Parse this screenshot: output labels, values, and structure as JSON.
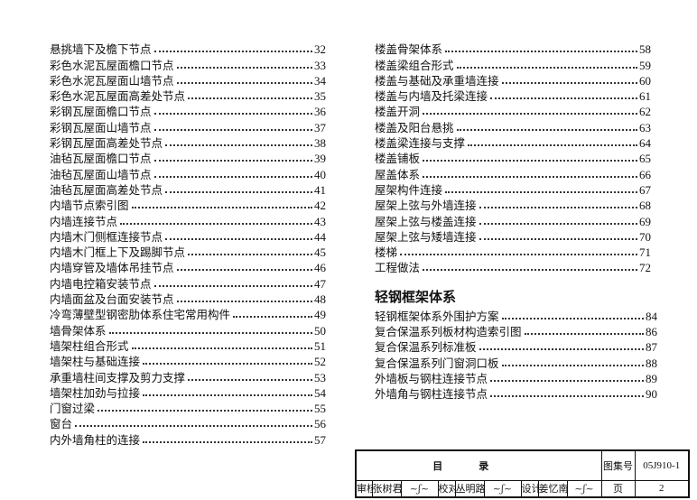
{
  "left_column": [
    {
      "title": "悬挑墙下及檐下节点",
      "page": "32"
    },
    {
      "title": "彩色水泥瓦屋面檐口节点",
      "page": "33"
    },
    {
      "title": "彩色水泥瓦屋面山墙节点",
      "page": "34"
    },
    {
      "title": "彩色水泥瓦屋面高差处节点",
      "page": "35"
    },
    {
      "title": "彩钢瓦屋面檐口节点",
      "page": "36"
    },
    {
      "title": "彩钢瓦屋面山墙节点",
      "page": "37"
    },
    {
      "title": "彩钢瓦屋面高差处节点",
      "page": "38"
    },
    {
      "title": "油毡瓦屋面檐口节点",
      "page": "39"
    },
    {
      "title": "油毡瓦屋面山墙节点",
      "page": "40"
    },
    {
      "title": "油毡瓦屋面高差处节点",
      "page": "41"
    },
    {
      "title": "内墙节点索引图",
      "page": "42"
    },
    {
      "title": "内墙连接节点",
      "page": "43"
    },
    {
      "title": "内墙木门侧框连接节点",
      "page": "44"
    },
    {
      "title": "内墙木门框上下及踢脚节点",
      "page": "45"
    },
    {
      "title": "内墙穿管及墙体吊挂节点",
      "page": "46"
    },
    {
      "title": "内墙电控箱安装节点",
      "page": "47"
    },
    {
      "title": "内墙面盆及台面安装节点",
      "page": "48"
    },
    {
      "title": "冷弯薄壁型钢密肋体系住宅常用构件",
      "page": "49"
    },
    {
      "title": "墙骨架体系",
      "page": "50"
    },
    {
      "title": "墙架柱组合形式",
      "page": "51"
    },
    {
      "title": "墙架柱与基础连接",
      "page": "52"
    },
    {
      "title": "承重墙柱间支撑及剪力支撑",
      "page": "53"
    },
    {
      "title": "墙架柱加劲与拉接",
      "page": "54"
    },
    {
      "title": "门窗过梁",
      "page": "55"
    },
    {
      "title": "窗台",
      "page": "56"
    },
    {
      "title": "内外墙角柱的连接",
      "page": "57"
    }
  ],
  "right_column": [
    {
      "title": "楼盖骨架体系",
      "page": "58"
    },
    {
      "title": "楼盖梁组合形式",
      "page": "59"
    },
    {
      "title": "楼盖与基础及承重墙连接",
      "page": "60"
    },
    {
      "title": "楼盖与内墙及托梁连接",
      "page": "61"
    },
    {
      "title": "楼盖开洞",
      "page": "62"
    },
    {
      "title": "楼盖及阳台悬挑",
      "page": "63"
    },
    {
      "title": "楼盖梁连接与支撑",
      "page": "64"
    },
    {
      "title": "楼盖铺板",
      "page": "65"
    },
    {
      "title": "屋盖体系",
      "page": "66"
    },
    {
      "title": "屋架构件连接",
      "page": "67"
    },
    {
      "title": "屋架上弦与外墙连接",
      "page": "68"
    },
    {
      "title": "屋架上弦与楼盖连接",
      "page": "69"
    },
    {
      "title": "屋架上弦与矮墙连接",
      "page": "70"
    },
    {
      "title": "楼梯",
      "page": "71"
    },
    {
      "title": "工程做法",
      "page": "72"
    }
  ],
  "section": {
    "heading": "轻钢框架体系",
    "items": [
      {
        "title": "轻钢框架体系外围护方案",
        "page": "84"
      },
      {
        "title": "复合保温系列板材构造索引图",
        "page": "86"
      },
      {
        "title": "复合保温系列标准板",
        "page": "87"
      },
      {
        "title": "复合保温系列门窗洞口板",
        "page": "88"
      },
      {
        "title": "外墙板与钢柱连接节点",
        "page": "89"
      },
      {
        "title": "外墙角与钢柱连接节点",
        "page": "90"
      }
    ]
  },
  "title_block": {
    "title": "目录",
    "atlas_label": "图集号",
    "atlas_no": "05J910-1",
    "review_label": "审核",
    "reviewer": "张树君",
    "reviewer_signature": "张树君",
    "check_label": "校对",
    "checker": "丛明路",
    "checker_signature": "丛明路",
    "design_label": "设计",
    "designer": "姜忆南",
    "designer_signature": "姜忆南",
    "page_label": "页",
    "page_no": "2"
  }
}
